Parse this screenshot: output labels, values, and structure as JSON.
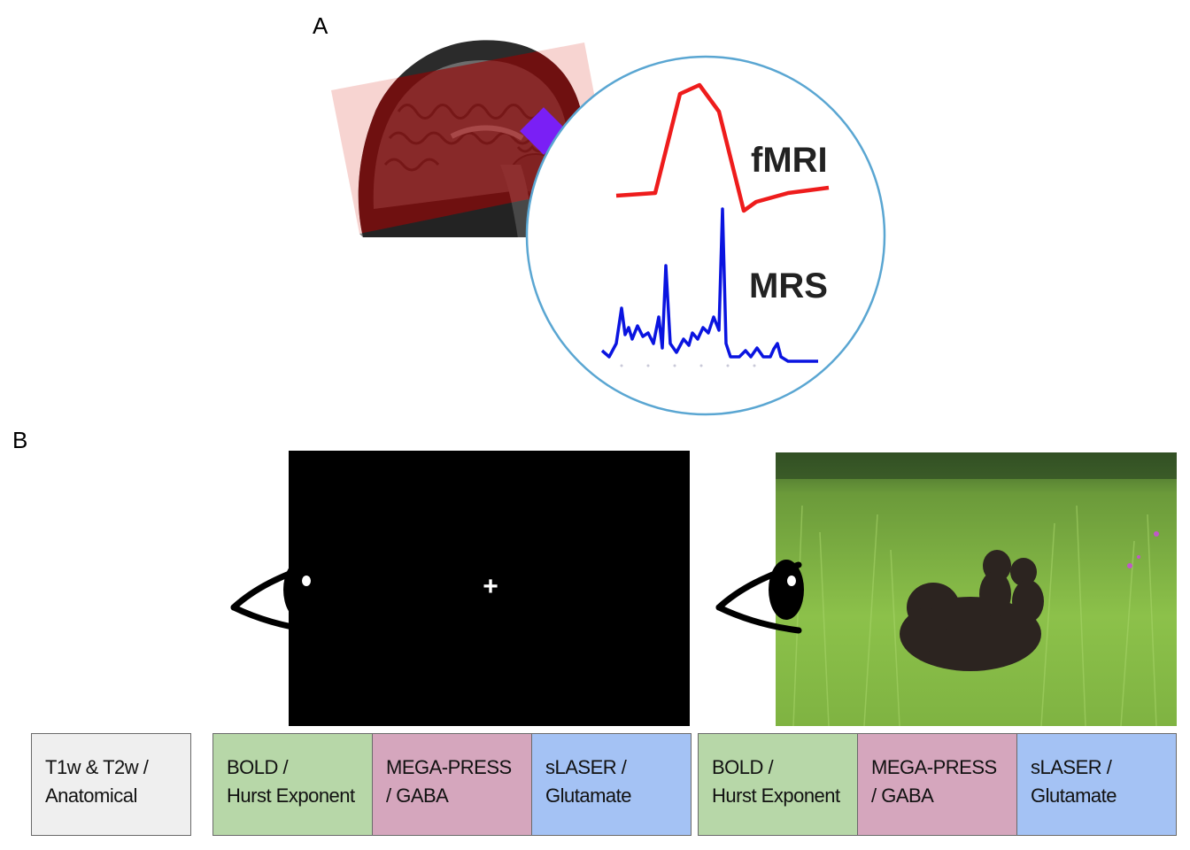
{
  "panels": {
    "a": "A",
    "b": "B"
  },
  "panel_a": {
    "labels": {
      "fmri": "fMRI",
      "mrs": "MRS"
    },
    "colors": {
      "fmri_trace": "#ee1c1c",
      "mrs_trace": "#0a14e0",
      "voxel": "#7a1ff5",
      "slab": "#f4c6c3",
      "circle": "#5aa6d2"
    }
  },
  "panel_b": {
    "fixation_symbol": "+",
    "boxes": [
      {
        "line1": "T1w & T2w /",
        "line2": "Anatomical",
        "color": "#efefef"
      },
      {
        "line1": "BOLD /",
        "line2": "Hurst Exponent",
        "color": "#b7d7a8"
      },
      {
        "line1": "MEGA-PRESS",
        "line2": "/ GABA",
        "color": "#d5a6bd"
      },
      {
        "line1": "sLASER /",
        "line2": "Glutamate",
        "color": "#a4c2f4"
      },
      {
        "line1": "BOLD /",
        "line2": "Hurst Exponent",
        "color": "#b7d7a8"
      },
      {
        "line1": "MEGA-PRESS",
        "line2": "/ GABA",
        "color": "#d5a6bd"
      },
      {
        "line1": "sLASER /",
        "line2": "Glutamate",
        "color": "#a4c2f4"
      }
    ]
  }
}
